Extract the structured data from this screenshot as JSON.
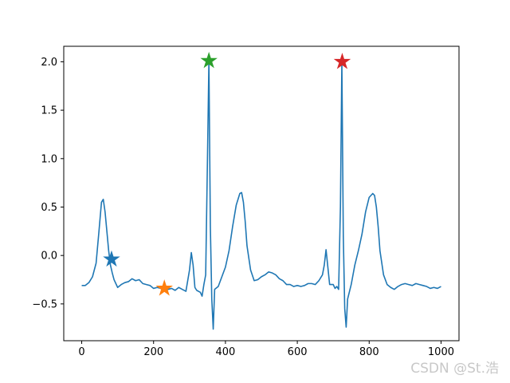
{
  "chart_data": {
    "type": "line",
    "title": "",
    "xlabel": "",
    "ylabel": "",
    "xlim": [
      -50,
      1050
    ],
    "ylim": [
      -0.88,
      2.16
    ],
    "x_ticks": [
      0,
      200,
      400,
      600,
      800,
      1000
    ],
    "x_tick_labels": [
      "0",
      "200",
      "400",
      "600",
      "800",
      "1000"
    ],
    "y_ticks": [
      -0.5,
      0.0,
      0.5,
      1.0,
      1.5,
      2.0
    ],
    "y_tick_labels": [
      "−0.5",
      "0.0",
      "0.5",
      "1.0",
      "1.5",
      "2.0"
    ],
    "grid": false,
    "series": [
      {
        "color": "#1f77b4",
        "x": [
          0,
          10,
          20,
          30,
          40,
          48,
          55,
          60,
          65,
          70,
          75,
          80,
          85,
          90,
          95,
          100,
          110,
          120,
          130,
          140,
          150,
          160,
          170,
          180,
          190,
          200,
          210,
          220,
          230,
          240,
          250,
          260,
          270,
          280,
          290,
          300,
          305,
          310,
          315,
          320,
          330,
          335,
          340,
          345,
          350,
          354,
          358,
          362,
          366,
          370,
          380,
          390,
          400,
          410,
          420,
          430,
          440,
          445,
          450,
          455,
          460,
          470,
          480,
          490,
          500,
          510,
          520,
          530,
          540,
          550,
          560,
          570,
          580,
          590,
          600,
          610,
          620,
          630,
          640,
          650,
          660,
          670,
          675,
          680,
          685,
          690,
          700,
          705,
          710,
          715,
          720,
          724,
          728,
          732,
          736,
          740,
          750,
          760,
          770,
          780,
          790,
          800,
          810,
          815,
          820,
          825,
          830,
          840,
          850,
          860,
          870,
          880,
          890,
          900,
          910,
          920,
          930,
          940,
          950,
          960,
          970,
          980,
          990,
          1000
        ],
        "values": [
          -0.31,
          -0.31,
          -0.28,
          -0.22,
          -0.08,
          0.25,
          0.55,
          0.58,
          0.45,
          0.25,
          0.05,
          -0.1,
          -0.18,
          -0.25,
          -0.29,
          -0.33,
          -0.3,
          -0.28,
          -0.27,
          -0.24,
          -0.26,
          -0.25,
          -0.29,
          -0.3,
          -0.31,
          -0.34,
          -0.33,
          -0.34,
          -0.34,
          -0.35,
          -0.34,
          -0.36,
          -0.33,
          -0.35,
          -0.37,
          -0.15,
          0.03,
          -0.1,
          -0.33,
          -0.36,
          -0.38,
          -0.42,
          -0.3,
          -0.2,
          1.0,
          2.01,
          0.3,
          -0.45,
          -0.76,
          -0.35,
          -0.32,
          -0.22,
          -0.12,
          0.05,
          0.3,
          0.52,
          0.64,
          0.65,
          0.55,
          0.35,
          0.1,
          -0.15,
          -0.26,
          -0.25,
          -0.22,
          -0.2,
          -0.17,
          -0.18,
          -0.2,
          -0.24,
          -0.26,
          -0.3,
          -0.3,
          -0.32,
          -0.31,
          -0.32,
          -0.31,
          -0.29,
          -0.29,
          -0.3,
          -0.26,
          -0.2,
          -0.1,
          0.06,
          -0.12,
          -0.3,
          -0.3,
          -0.34,
          -0.32,
          -0.35,
          0.5,
          2.0,
          0.2,
          -0.55,
          -0.74,
          -0.45,
          -0.3,
          -0.1,
          0.05,
          0.22,
          0.45,
          0.6,
          0.64,
          0.62,
          0.5,
          0.3,
          0.05,
          -0.2,
          -0.3,
          -0.33,
          -0.35,
          -0.32,
          -0.3,
          -0.29,
          -0.3,
          -0.31,
          -0.29,
          -0.3,
          -0.31,
          -0.32,
          -0.34,
          -0.33,
          -0.34,
          -0.32
        ]
      }
    ],
    "markers": [
      {
        "x": 83,
        "y": -0.04,
        "color": "#1f77b4",
        "shape": "star"
      },
      {
        "x": 230,
        "y": -0.34,
        "color": "#ff7f0e",
        "shape": "star"
      },
      {
        "x": 354,
        "y": 2.01,
        "color": "#2ca02c",
        "shape": "star"
      },
      {
        "x": 725,
        "y": 2.0,
        "color": "#d62728",
        "shape": "star"
      }
    ]
  },
  "watermark": "CSDN @St.浩"
}
